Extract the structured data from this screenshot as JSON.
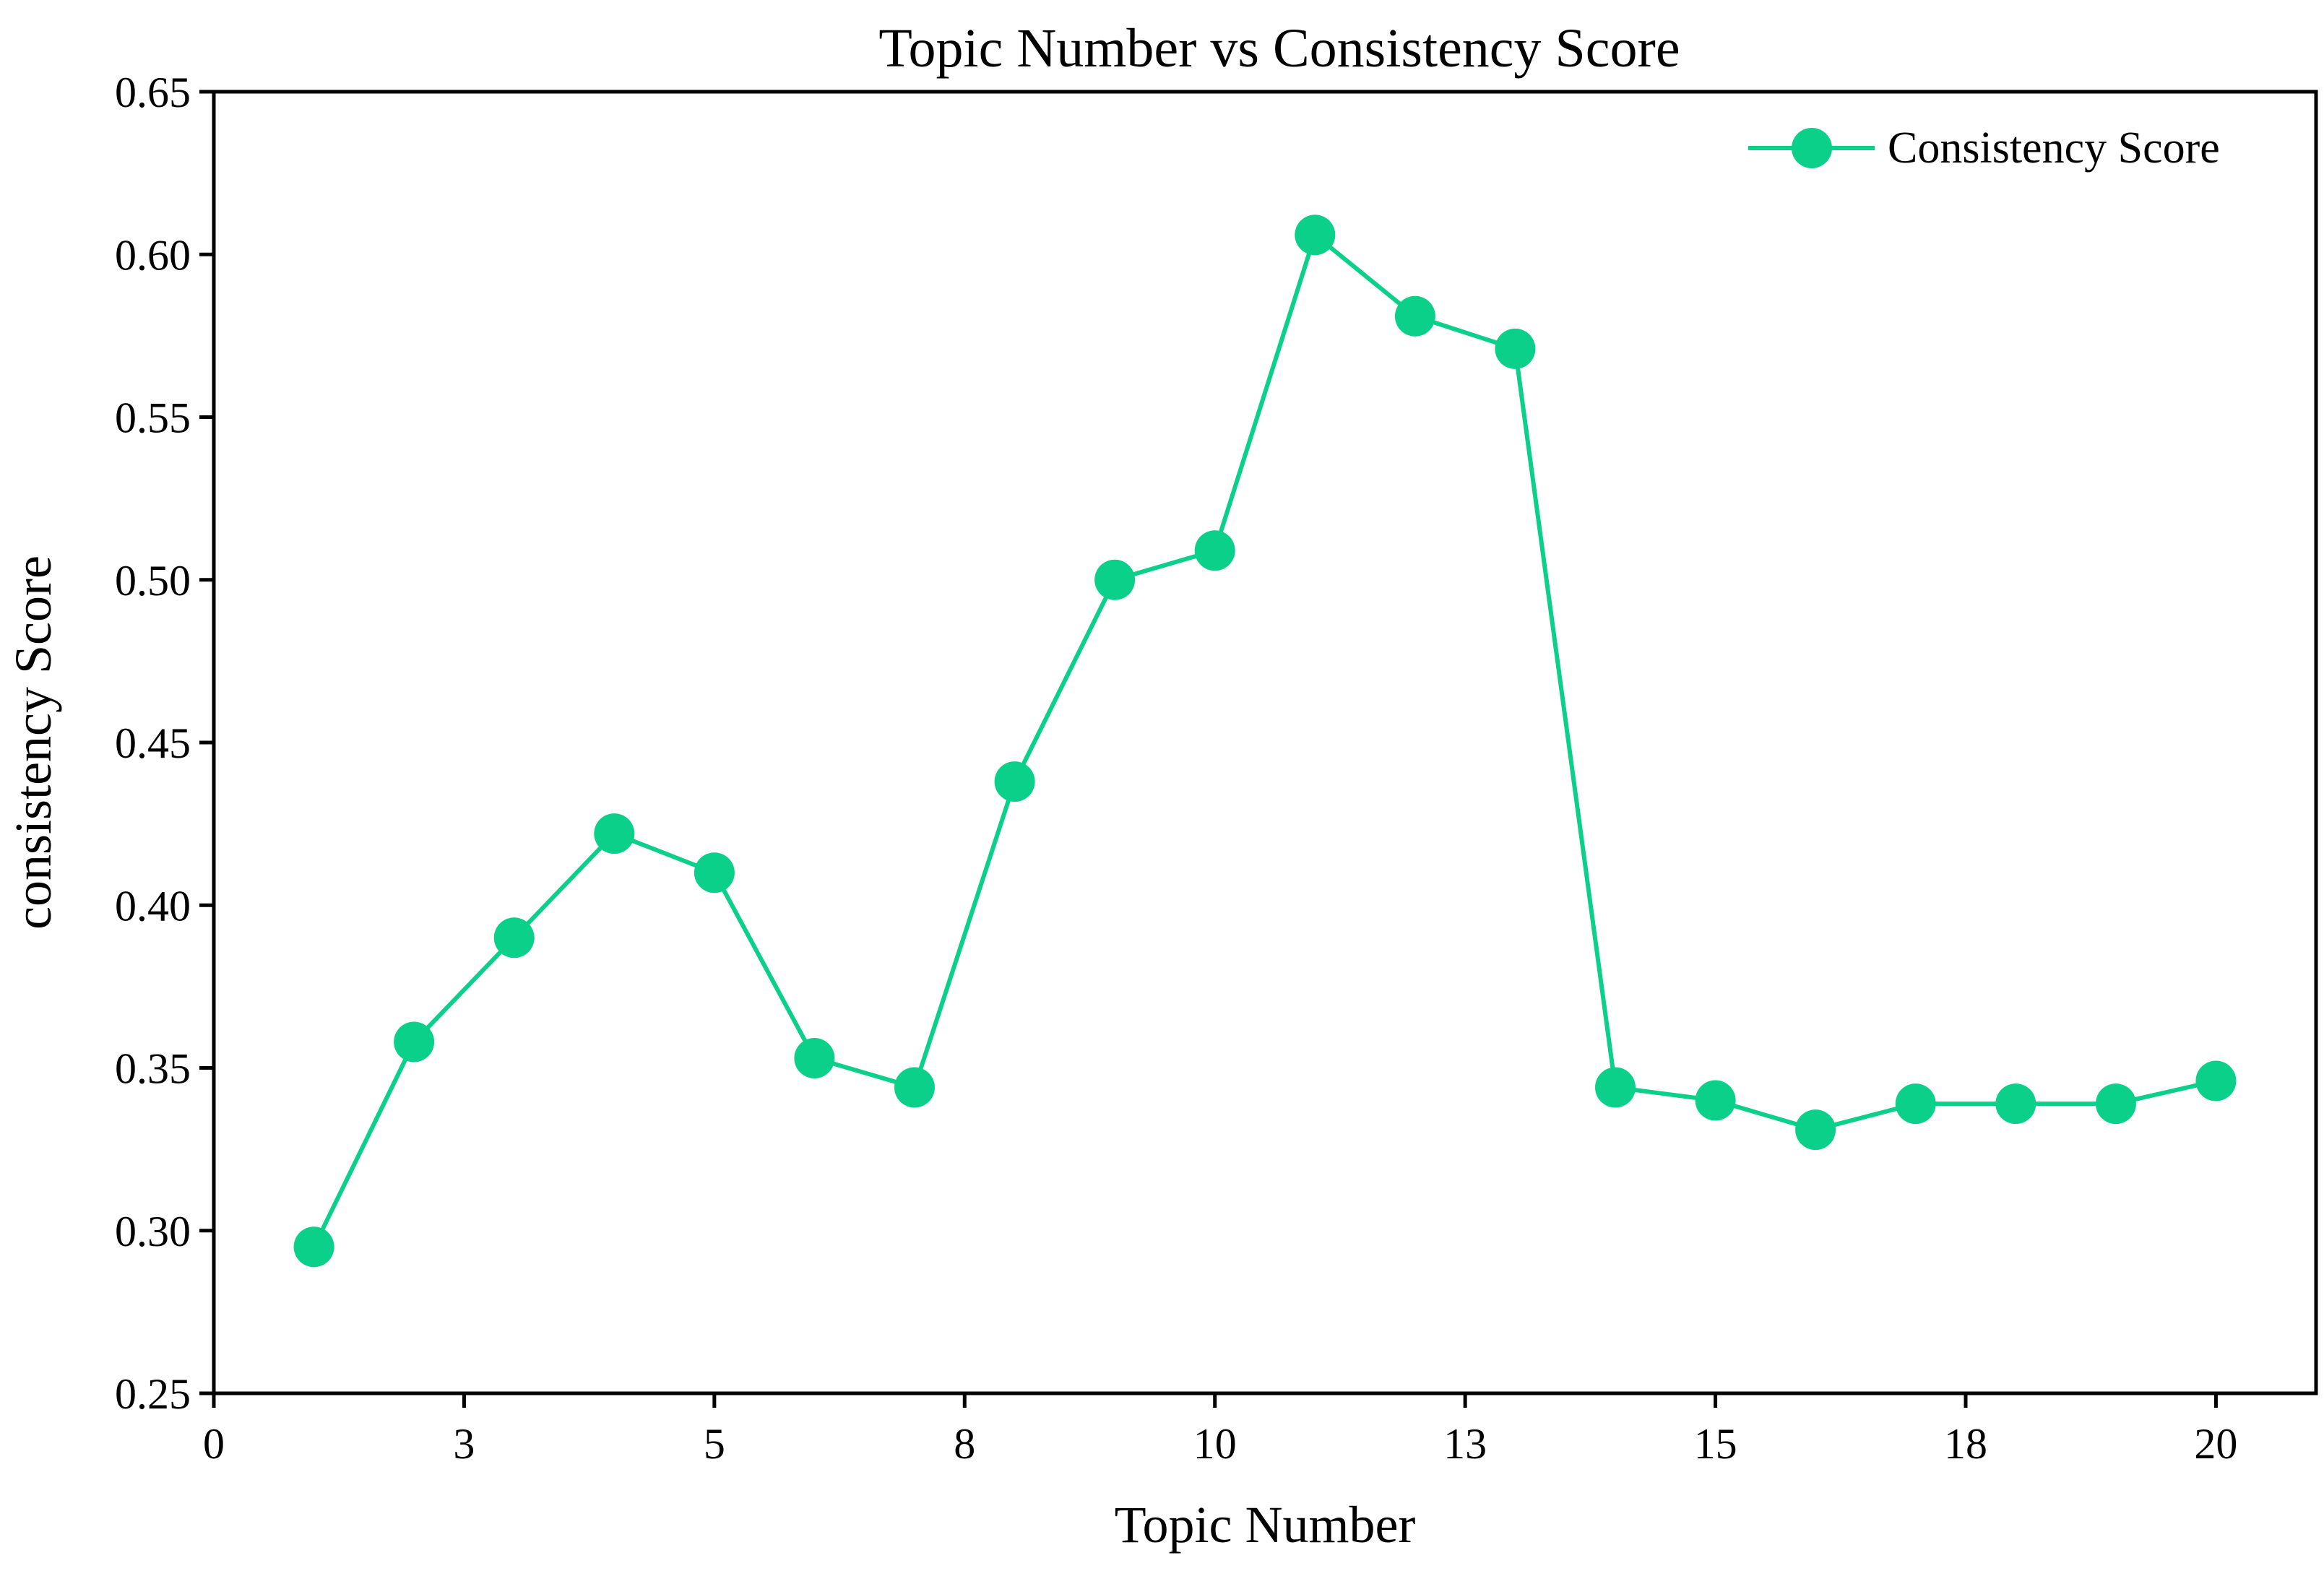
{
  "chart_data": {
    "type": "line",
    "title": "Topic Number vs Consistency Score",
    "xlabel": "Topic Number",
    "ylabel": "consistency Score",
    "xlim": [
      0,
      21
    ],
    "ylim": [
      0.25,
      0.65
    ],
    "x_tick_values": [
      0,
      2.5,
      5,
      7.5,
      10,
      12.5,
      15,
      17.5,
      20
    ],
    "x_tick_labels": [
      "0",
      "3",
      "5",
      "8",
      "10",
      "13",
      "15",
      "18",
      "20"
    ],
    "y_ticks": [
      "0.25",
      "0.30",
      "0.35",
      "0.40",
      "0.45",
      "0.50",
      "0.55",
      "0.60",
      "0.65"
    ],
    "grid": false,
    "legend_position": "top-right",
    "series": [
      {
        "name": "Consistency Score",
        "color": "#0bd08a",
        "marker": "circle",
        "x": [
          1,
          2,
          3,
          4,
          5,
          6,
          7,
          8,
          9,
          10,
          11,
          12,
          13,
          14,
          15,
          16,
          17,
          18,
          19,
          20
        ],
        "values": [
          0.295,
          0.358,
          0.39,
          0.422,
          0.41,
          0.353,
          0.344,
          0.438,
          0.5,
          0.509,
          0.606,
          0.581,
          0.571,
          0.344,
          0.34,
          0.331,
          0.339,
          0.339,
          0.339,
          0.346
        ]
      }
    ]
  }
}
